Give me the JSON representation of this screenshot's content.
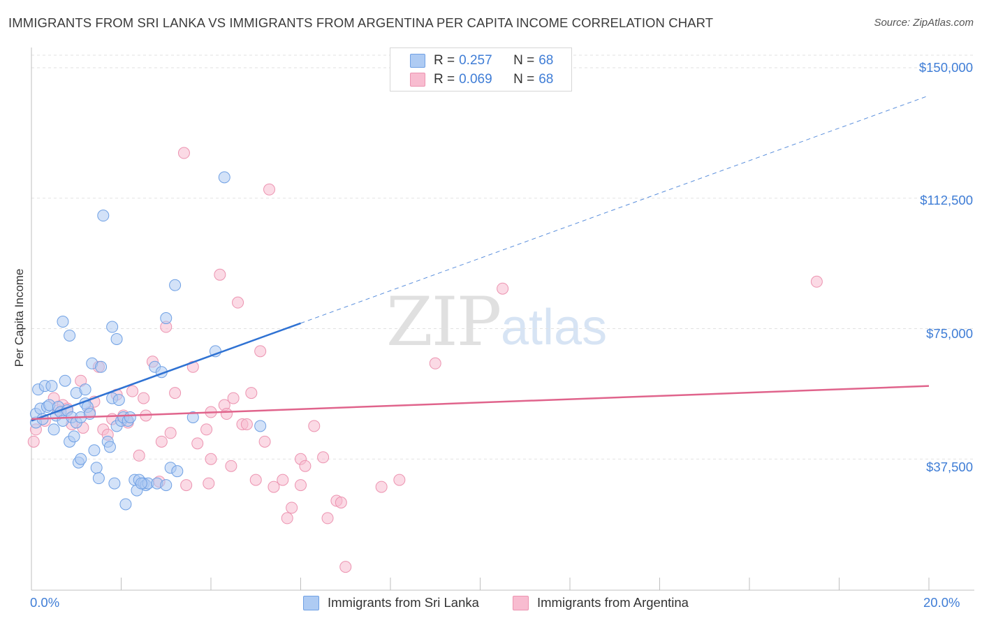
{
  "header": {
    "title": "IMMIGRANTS FROM SRI LANKA VS IMMIGRANTS FROM ARGENTINA PER CAPITA INCOME CORRELATION CHART",
    "source": "Source: ZipAtlas.com"
  },
  "watermark": {
    "zip": "ZIP",
    "atlas": "atlas"
  },
  "legend": {
    "rows": [
      {
        "r_label": "R = ",
        "r_value": "0.257",
        "n_label": "N = ",
        "n_value": "68",
        "color": "#aecbf3"
      },
      {
        "r_label": "R = ",
        "r_value": "0.069",
        "n_label": "N = ",
        "n_value": "68",
        "color": "#f8bcd0"
      }
    ]
  },
  "chart_data": {
    "type": "scatter",
    "title": "IMMIGRANTS FROM SRI LANKA VS IMMIGRANTS FROM ARGENTINA PER CAPITA INCOME CORRELATION CHART",
    "xlabel": "",
    "ylabel": "Per Capita Income",
    "xlim": [
      0,
      20
    ],
    "ylim": [
      0,
      150000
    ],
    "x_tick_labels": [
      "0.0%",
      "20.0%"
    ],
    "y_ticks": [
      37500,
      75000,
      112500,
      150000
    ],
    "y_tick_labels": [
      "$37,500",
      "$75,000",
      "$112,500",
      "$150,000"
    ],
    "grid": true,
    "legend_position": "top-center",
    "series": [
      {
        "name": "Immigrants from Sri Lanka",
        "color": "#aecbf3",
        "stroke": "#6fa0e4",
        "line_color": "#2f72d3",
        "trend": {
          "x0": 0,
          "y0": 48500,
          "x_solid_end": 6.0,
          "x1": 20,
          "y1": 142000
        },
        "points": [
          [
            0.1,
            48000
          ],
          [
            0.1,
            50500
          ],
          [
            0.15,
            57500
          ],
          [
            0.2,
            52000
          ],
          [
            0.25,
            49000
          ],
          [
            0.3,
            58500
          ],
          [
            0.35,
            52500
          ],
          [
            0.4,
            53000
          ],
          [
            0.45,
            58500
          ],
          [
            0.5,
            46000
          ],
          [
            0.55,
            50000
          ],
          [
            0.6,
            52500
          ],
          [
            0.65,
            51000
          ],
          [
            0.7,
            48500
          ],
          [
            0.7,
            77000
          ],
          [
            0.75,
            60000
          ],
          [
            0.8,
            51500
          ],
          [
            0.85,
            42500
          ],
          [
            0.85,
            73000
          ],
          [
            0.9,
            49500
          ],
          [
            0.95,
            44000
          ],
          [
            1.0,
            48000
          ],
          [
            1.0,
            56500
          ],
          [
            1.05,
            36500
          ],
          [
            1.1,
            37500
          ],
          [
            1.1,
            49500
          ],
          [
            1.2,
            53500
          ],
          [
            1.2,
            57500
          ],
          [
            1.25,
            52500
          ],
          [
            1.3,
            50500
          ],
          [
            1.35,
            65000
          ],
          [
            1.4,
            40000
          ],
          [
            1.45,
            35000
          ],
          [
            1.5,
            32000
          ],
          [
            1.55,
            64000
          ],
          [
            1.6,
            107500
          ],
          [
            1.7,
            42500
          ],
          [
            1.75,
            41000
          ],
          [
            1.8,
            75500
          ],
          [
            1.8,
            55000
          ],
          [
            1.85,
            30500
          ],
          [
            1.9,
            47000
          ],
          [
            1.9,
            72000
          ],
          [
            1.95,
            54500
          ],
          [
            2.0,
            48500
          ],
          [
            2.05,
            49500
          ],
          [
            2.1,
            24500
          ],
          [
            2.15,
            48500
          ],
          [
            2.2,
            49500
          ],
          [
            2.3,
            31500
          ],
          [
            2.35,
            28500
          ],
          [
            2.4,
            31500
          ],
          [
            2.5,
            30500
          ],
          [
            2.55,
            30000
          ],
          [
            2.6,
            30500
          ],
          [
            2.75,
            64000
          ],
          [
            2.8,
            30500
          ],
          [
            2.9,
            62500
          ],
          [
            3.0,
            78000
          ],
          [
            3.0,
            30000
          ],
          [
            3.1,
            35000
          ],
          [
            3.2,
            87500
          ],
          [
            3.25,
            34000
          ],
          [
            3.6,
            49500
          ],
          [
            4.1,
            68500
          ],
          [
            4.3,
            118500
          ],
          [
            5.1,
            47000
          ],
          [
            2.45,
            30500
          ]
        ]
      },
      {
        "name": "Immigrants from Argentina",
        "color": "#f8bcd0",
        "stroke": "#ec93b0",
        "line_color": "#e0648c",
        "trend": {
          "x0": 0,
          "y0": 49000,
          "x1": 20,
          "y1": 58500
        },
        "points": [
          [
            0.05,
            42500
          ],
          [
            0.1,
            46000
          ],
          [
            0.3,
            48500
          ],
          [
            0.5,
            55000
          ],
          [
            0.6,
            51500
          ],
          [
            0.7,
            53000
          ],
          [
            0.8,
            52000
          ],
          [
            0.9,
            47500
          ],
          [
            1.1,
            60000
          ],
          [
            1.15,
            46500
          ],
          [
            1.3,
            51000
          ],
          [
            1.4,
            54000
          ],
          [
            1.5,
            64000
          ],
          [
            1.6,
            46000
          ],
          [
            1.7,
            44500
          ],
          [
            1.8,
            49000
          ],
          [
            1.9,
            56000
          ],
          [
            2.05,
            50000
          ],
          [
            2.15,
            48000
          ],
          [
            2.25,
            57000
          ],
          [
            2.4,
            38500
          ],
          [
            2.5,
            55000
          ],
          [
            2.55,
            50000
          ],
          [
            2.7,
            65500
          ],
          [
            2.85,
            31000
          ],
          [
            2.9,
            42500
          ],
          [
            3.0,
            75500
          ],
          [
            3.1,
            45000
          ],
          [
            3.2,
            56500
          ],
          [
            3.4,
            125500
          ],
          [
            3.45,
            30000
          ],
          [
            3.6,
            64000
          ],
          [
            3.7,
            42000
          ],
          [
            3.9,
            46000
          ],
          [
            3.95,
            30500
          ],
          [
            4.0,
            37500
          ],
          [
            4.0,
            51000
          ],
          [
            4.2,
            90500
          ],
          [
            4.3,
            53000
          ],
          [
            4.35,
            50500
          ],
          [
            4.45,
            35500
          ],
          [
            4.5,
            55000
          ],
          [
            4.6,
            82500
          ],
          [
            4.7,
            47500
          ],
          [
            4.8,
            47500
          ],
          [
            4.9,
            56500
          ],
          [
            5.0,
            31500
          ],
          [
            5.1,
            68500
          ],
          [
            5.2,
            42500
          ],
          [
            5.3,
            115000
          ],
          [
            5.4,
            29500
          ],
          [
            5.6,
            31500
          ],
          [
            5.7,
            20500
          ],
          [
            5.8,
            23500
          ],
          [
            6.0,
            37500
          ],
          [
            6.0,
            30000
          ],
          [
            6.1,
            35500
          ],
          [
            6.3,
            47000
          ],
          [
            6.5,
            38000
          ],
          [
            6.6,
            20500
          ],
          [
            6.8,
            25500
          ],
          [
            6.9,
            25000
          ],
          [
            7.0,
            6500
          ],
          [
            7.8,
            29500
          ],
          [
            8.2,
            31500
          ],
          [
            9.0,
            65000
          ],
          [
            10.5,
            86500
          ],
          [
            17.5,
            88500
          ]
        ]
      }
    ]
  },
  "bottom_legend": [
    {
      "label": "Immigrants from Sri Lanka",
      "color": "#aecbf3"
    },
    {
      "label": "Immigrants from Argentina",
      "color": "#f8bcd0"
    }
  ]
}
